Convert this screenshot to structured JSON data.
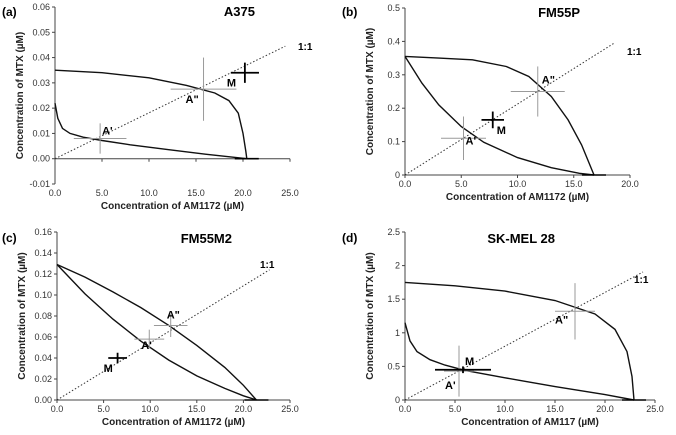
{
  "chart_data": [
    {
      "type": "line",
      "panel_label": "(a)",
      "title": "A375",
      "xlabel": "Concentration of AM1172 (µM)",
      "ylabel": "Concentration of MTX (µM)",
      "xlim": [
        0,
        25
      ],
      "ylim": [
        -0.01,
        0.06
      ],
      "x_ticks": [
        0,
        5,
        10,
        15,
        20,
        25
      ],
      "x_tick_labels": [
        "0.0",
        "5.0",
        "10.0",
        "15.0",
        "20.0",
        "25.0"
      ],
      "y_ticks": [
        -0.01,
        0,
        0.01,
        0.02,
        0.03,
        0.04,
        0.05,
        0.06
      ],
      "y_tick_labels": [
        "-0.01",
        "0.00",
        "0.01",
        "0.02",
        "0.03",
        "0.04",
        "0.05",
        "0.06"
      ],
      "x_intercept": 20.4,
      "y_intercept": 0.035,
      "upper_x": [
        0,
        5,
        10,
        14,
        17,
        18.5,
        19.5,
        20.0,
        20.3,
        20.4
      ],
      "upper_y": [
        0.035,
        0.034,
        0.032,
        0.029,
        0.026,
        0.023,
        0.018,
        0.01,
        0.003,
        0
      ],
      "lower_x": [
        0,
        0.3,
        0.8,
        1.6,
        3,
        5,
        8,
        12,
        16,
        20.4
      ],
      "lower_y": [
        0.022,
        0.016,
        0.012,
        0.01,
        0.0085,
        0.0072,
        0.0055,
        0.0036,
        0.0018,
        0
      ],
      "line_one_to_one": {
        "end_x": 24.5,
        "end_y": 0.0445,
        "label": "1:1"
      },
      "points": [
        {
          "label": "A'",
          "x": 4.8,
          "y": 0.008,
          "err_x": 2.8,
          "err_y": 0.006
        },
        {
          "label": "A\"",
          "x": 15.8,
          "y": 0.0275,
          "err_x": 3.5,
          "err_y": 0.0125
        },
        {
          "label": "M",
          "x": 20.2,
          "y": 0.034,
          "err_x": 1.5,
          "err_y": 0.004
        }
      ]
    },
    {
      "type": "line",
      "panel_label": "(b)",
      "title": "FM55P",
      "xlabel": "Concentration of AM1172 (µM)",
      "ylabel": "Concentration of MTX (µM)",
      "xlim": [
        0,
        20
      ],
      "ylim": [
        0,
        0.5
      ],
      "x_ticks": [
        0,
        5,
        10,
        15,
        20
      ],
      "x_tick_labels": [
        "0.0",
        "5.0",
        "10.0",
        "15.0",
        "20.0"
      ],
      "y_ticks": [
        0,
        0.1,
        0.2,
        0.3,
        0.4,
        0.5
      ],
      "y_tick_labels": [
        "0",
        "0.1",
        "0.2",
        "0.3",
        "0.4",
        "0.5"
      ],
      "x_intercept": 16.8,
      "y_intercept": 0.355,
      "upper_x": [
        0,
        3,
        6,
        9,
        11,
        13,
        14.5,
        15.7,
        16.8
      ],
      "upper_y": [
        0.355,
        0.35,
        0.345,
        0.325,
        0.295,
        0.235,
        0.165,
        0.09,
        0
      ],
      "lower_x": [
        0,
        1.5,
        3,
        5,
        7,
        10,
        13,
        15.5,
        16.8
      ],
      "lower_y": [
        0.355,
        0.275,
        0.21,
        0.145,
        0.098,
        0.052,
        0.022,
        0.005,
        0
      ],
      "line_one_to_one": {
        "end_x": 18.6,
        "end_y": 0.395,
        "label": "1:1"
      },
      "points": [
        {
          "label": "A'",
          "x": 5.2,
          "y": 0.11,
          "err_x": 2.0,
          "err_y": 0.065
        },
        {
          "label": "A\"",
          "x": 11.8,
          "y": 0.25,
          "err_x": 2.4,
          "err_y": 0.075
        },
        {
          "label": "M",
          "x": 7.8,
          "y": 0.165,
          "err_x": 1.0,
          "err_y": 0.025
        }
      ]
    },
    {
      "type": "line",
      "panel_label": "(c)",
      "title": "FM55M2",
      "xlabel": "Concentration of AM1172 (µM)",
      "ylabel": "Concentration of MTX (µM)",
      "xlim": [
        0,
        25
      ],
      "ylim": [
        0,
        0.16
      ],
      "x_ticks": [
        0,
        5,
        10,
        15,
        20,
        25
      ],
      "x_tick_labels": [
        "0.0",
        "5.0",
        "10.0",
        "15.0",
        "20.0",
        "25.0"
      ],
      "y_ticks": [
        0,
        0.02,
        0.04,
        0.06,
        0.08,
        0.1,
        0.12,
        0.14,
        0.16
      ],
      "y_tick_labels": [
        "0.00",
        "0.02",
        "0.04",
        "0.06",
        "0.08",
        "0.10",
        "0.12",
        "0.14",
        "0.16"
      ],
      "x_intercept": 21.4,
      "y_intercept": 0.129,
      "upper_x": [
        0,
        3,
        6,
        9,
        12,
        15,
        18,
        20,
        21.4
      ],
      "upper_y": [
        0.129,
        0.117,
        0.103,
        0.088,
        0.071,
        0.052,
        0.031,
        0.014,
        0
      ],
      "lower_x": [
        0,
        3,
        6,
        9,
        12,
        15,
        18,
        20,
        21.4
      ],
      "lower_y": [
        0.129,
        0.101,
        0.077,
        0.056,
        0.038,
        0.023,
        0.011,
        0.004,
        0
      ],
      "line_one_to_one": {
        "end_x": 22.8,
        "end_y": 0.124,
        "label": "1:1"
      },
      "points": [
        {
          "label": "A'",
          "x": 9.9,
          "y": 0.058,
          "err_x": 1.6,
          "err_y": 0.009
        },
        {
          "label": "A\"",
          "x": 12.2,
          "y": 0.071,
          "err_x": 1.8,
          "err_y": 0.011
        },
        {
          "label": "M",
          "x": 6.5,
          "y": 0.04,
          "err_x": 1.0,
          "err_y": 0.005
        }
      ]
    },
    {
      "type": "line",
      "panel_label": "(d)",
      "title": "SK-MEL 28",
      "xlabel": "Concentration of AM117 (µM)",
      "ylabel": "Concentration of MTX (µM)",
      "xlim": [
        0,
        25
      ],
      "ylim": [
        0,
        2.5
      ],
      "x_ticks": [
        0,
        5,
        10,
        15,
        20,
        25
      ],
      "x_tick_labels": [
        "0.0",
        "5.0",
        "10.0",
        "15.0",
        "20.0",
        "25.0"
      ],
      "y_ticks": [
        0,
        0.5,
        1,
        1.5,
        2,
        2.5
      ],
      "y_tick_labels": [
        "0",
        "0.5",
        "1",
        "1.5",
        "2",
        "2.5"
      ],
      "x_intercept": 22.9,
      "y_intercept": 1.75,
      "upper_x": [
        0,
        5,
        10,
        15,
        19,
        21,
        22.2,
        22.7,
        22.9
      ],
      "upper_y": [
        1.75,
        1.7,
        1.62,
        1.48,
        1.28,
        1.05,
        0.72,
        0.35,
        0
      ],
      "lower_x": [
        0,
        0.5,
        1.2,
        2.5,
        4,
        6,
        10,
        15,
        20,
        22.9
      ],
      "lower_y": [
        1.15,
        0.88,
        0.72,
        0.6,
        0.52,
        0.44,
        0.33,
        0.2,
        0.08,
        0
      ],
      "line_one_to_one": {
        "end_x": 23.8,
        "end_y": 1.905,
        "label": "1:1"
      },
      "points": [
        {
          "label": "A'",
          "x": 5.4,
          "y": 0.43,
          "err_x": 1.5,
          "err_y": 0.38
        },
        {
          "label": "A\"",
          "x": 17.0,
          "y": 1.32,
          "err_x": 2.0,
          "err_y": 0.42
        },
        {
          "label": "M",
          "x": 5.8,
          "y": 0.45,
          "err_x": 2.8,
          "err_y": 0.05
        }
      ]
    }
  ]
}
